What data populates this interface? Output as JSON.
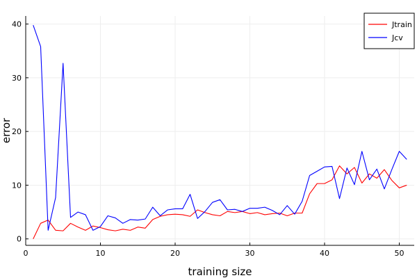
{
  "chart_data": {
    "type": "line",
    "title": "",
    "xlabel": "training size",
    "ylabel": "error",
    "xlim": [
      0,
      52
    ],
    "ylim": [
      -1.2,
      41.5
    ],
    "xticks": [
      0,
      10,
      20,
      30,
      40,
      50
    ],
    "yticks": [
      0,
      10,
      20,
      30,
      40
    ],
    "grid": true,
    "legend": "top-right",
    "x": [
      1,
      2,
      3,
      4,
      5,
      6,
      7,
      8,
      9,
      10,
      11,
      12,
      13,
      14,
      15,
      16,
      17,
      18,
      19,
      20,
      21,
      22,
      23,
      24,
      25,
      26,
      27,
      28,
      29,
      30,
      31,
      32,
      33,
      34,
      35,
      36,
      37,
      38,
      39,
      40,
      41,
      42,
      43,
      44,
      45,
      46,
      47,
      48,
      49,
      50,
      51
    ],
    "series": [
      {
        "name": "Jtrain",
        "color": "#ff0000",
        "values": [
          0.0,
          2.9,
          3.5,
          1.6,
          1.5,
          2.9,
          2.2,
          1.6,
          2.4,
          2.1,
          1.7,
          1.5,
          1.8,
          1.6,
          2.2,
          2.0,
          3.6,
          4.2,
          4.5,
          4.6,
          4.5,
          4.2,
          5.4,
          4.9,
          4.5,
          4.3,
          5.1,
          4.9,
          5.1,
          4.7,
          4.9,
          4.5,
          4.7,
          4.8,
          4.3,
          4.8,
          4.8,
          8.4,
          10.3,
          10.3,
          11.0,
          13.6,
          12.1,
          13.3,
          10.4,
          12.1,
          11.3,
          12.9,
          10.9,
          9.5,
          10.0
        ]
      },
      {
        "name": "Jcv",
        "color": "#0000ff",
        "values": [
          39.8,
          35.8,
          1.6,
          7.7,
          32.7,
          4.0,
          5.0,
          4.5,
          1.6,
          2.3,
          4.3,
          3.9,
          2.9,
          3.6,
          3.5,
          3.7,
          5.9,
          4.3,
          5.4,
          5.6,
          5.6,
          8.3,
          3.8,
          5.1,
          6.8,
          7.3,
          5.4,
          5.5,
          5.1,
          5.7,
          5.7,
          5.9,
          5.3,
          4.5,
          6.2,
          4.6,
          7.0,
          11.8,
          12.6,
          13.4,
          13.5,
          7.5,
          13.2,
          10.1,
          16.3,
          11.0,
          13.0,
          9.3,
          12.9,
          16.3,
          14.8
        ]
      }
    ]
  }
}
